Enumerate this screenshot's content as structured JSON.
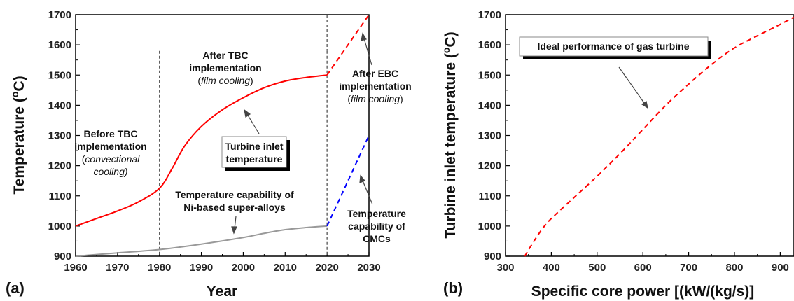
{
  "chart_data": [
    {
      "panel": "(a)",
      "type": "line",
      "xlabel": "Year",
      "ylabel": "Temperature (oC)",
      "xlim": [
        1960,
        2030
      ],
      "ylim": [
        900,
        1700
      ],
      "xticks": [
        "1960",
        "1970",
        "1980",
        "1990",
        "2000",
        "2010",
        "2020",
        "2030"
      ],
      "yticks": [
        "900",
        "1000",
        "1100",
        "1200",
        "1300",
        "1400",
        "1500",
        "1600",
        "1700"
      ],
      "grid": false,
      "series": [
        {
          "color": "#ff0000",
          "style": "solid",
          "x": [
            1960,
            1965,
            1970,
            1975,
            1980,
            1983,
            1986,
            1990,
            1995,
            2000,
            2005,
            2010,
            2015,
            2020
          ],
          "y": [
            1000,
            1025,
            1050,
            1080,
            1125,
            1190,
            1265,
            1330,
            1385,
            1425,
            1458,
            1480,
            1492,
            1500
          ]
        },
        {
          "color": "#ff0000",
          "style": "dashed",
          "x": [
            2020,
            2030
          ],
          "y": [
            1500,
            1700
          ]
        },
        {
          "color": "#999999",
          "style": "solid",
          "x": [
            1960,
            1970,
            1980,
            1990,
            2000,
            2005,
            2010,
            2015,
            2020
          ],
          "y": [
            900,
            911,
            922,
            940,
            962,
            976,
            988,
            995,
            1000
          ]
        },
        {
          "color": "#0000ff",
          "style": "dashed",
          "x": [
            2020,
            2030
          ],
          "y": [
            1000,
            1300
          ]
        }
      ],
      "vlines": [
        1980,
        2020
      ],
      "annotations": {
        "before_tbc": [
          "Before TBC",
          "implementation",
          "convectional",
          "cooling)"
        ],
        "before_tbc_paren": "(",
        "after_tbc": [
          "After TBC",
          "implementation",
          "film cooling",
          ")"
        ],
        "after_tbc_paren": "(",
        "after_ebc": [
          "After EBC",
          "implementation",
          "film cooling",
          ")"
        ],
        "after_ebc_paren": "(",
        "tit_box": [
          "Turbine inlet",
          "temperature"
        ],
        "ni_alloys": [
          "Temperature capability of",
          "Ni-based super-alloys"
        ],
        "cmc": [
          "Temperature",
          "capability of",
          "CMCs"
        ]
      }
    },
    {
      "panel": "(b)",
      "type": "line",
      "xlabel": "Specific core power [(kW/(kg/s)]",
      "ylabel": "Turbine inlet temperature (oC)",
      "xlim": [
        300,
        930
      ],
      "ylim": [
        900,
        1700
      ],
      "xticks": [
        "300",
        "400",
        "500",
        "600",
        "700",
        "800",
        "900"
      ],
      "yticks": [
        "900",
        "1000",
        "1100",
        "1200",
        "1300",
        "1400",
        "1500",
        "1600",
        "1700"
      ],
      "grid": false,
      "series": [
        {
          "color": "#ff0000",
          "style": "dashed",
          "x": [
            342,
            360,
            380,
            400,
            450,
            500,
            550,
            600,
            650,
            700,
            750,
            800,
            850,
            900,
            930
          ],
          "y": [
            900,
            945,
            990,
            1025,
            1095,
            1165,
            1240,
            1320,
            1400,
            1470,
            1535,
            1590,
            1630,
            1668,
            1692
          ]
        }
      ],
      "annotations": {
        "ideal_box": "Ideal performance of gas turbine"
      }
    }
  ]
}
